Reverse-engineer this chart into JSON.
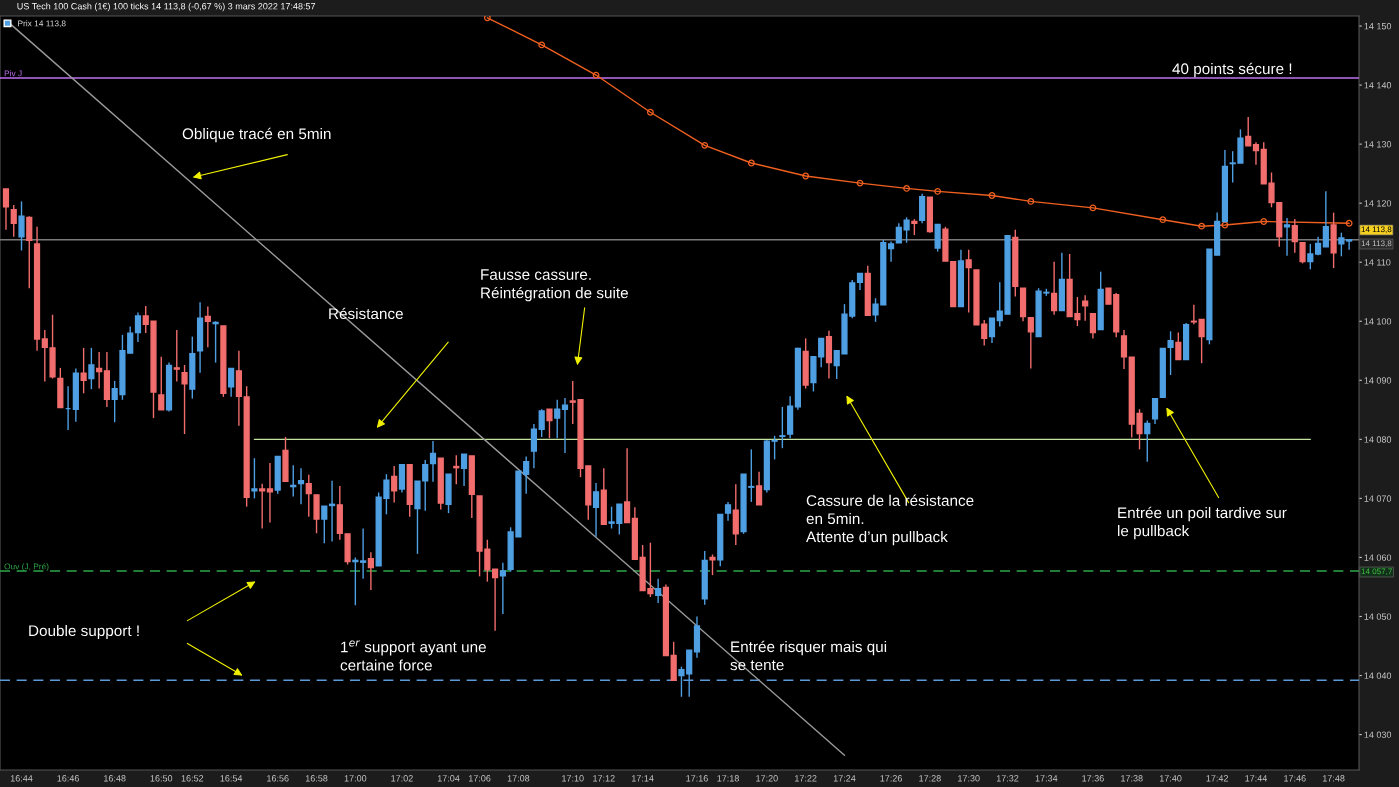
{
  "chart_data": {
    "type": "candlestick",
    "title": "US Tech 100 Cash (1€) 100 ticks 14 113,8 (-0,67 %) 3 mars 2022 17:48:57",
    "categories": [
      null,
      null,
      "16:44",
      null,
      null,
      null,
      null,
      null,
      "16:46",
      null,
      null,
      null,
      null,
      null,
      "16:48",
      null,
      null,
      null,
      null,
      null,
      "16:50",
      null,
      null,
      null,
      "16:52",
      null,
      null,
      null,
      null,
      "16:54",
      null,
      null,
      null,
      null,
      null,
      "16:56",
      null,
      null,
      null,
      null,
      "16:58",
      null,
      null,
      null,
      null,
      "17:00",
      null,
      null,
      null,
      null,
      null,
      "17:02",
      null,
      null,
      null,
      null,
      null,
      "17:04",
      null,
      null,
      null,
      "17:06",
      null,
      null,
      null,
      null,
      "17:08",
      null,
      null,
      null,
      null,
      null,
      null,
      "17:10",
      null,
      null,
      null,
      "17:12",
      null,
      null,
      null,
      null,
      "17:14",
      null,
      null,
      null,
      null,
      null,
      null,
      "17:16",
      null,
      null,
      null,
      "17:18",
      null,
      null,
      null,
      null,
      "17:20",
      null,
      null,
      null,
      null,
      "17:22",
      null,
      null,
      null,
      null,
      "17:24",
      null,
      null,
      null,
      null,
      null,
      "17:26",
      null,
      null,
      null,
      null,
      "17:28",
      null,
      null,
      null,
      null,
      "17:30",
      null,
      null,
      null,
      null,
      "17:32",
      null,
      null,
      null,
      null,
      "17:34",
      null,
      null,
      null,
      null,
      null,
      "17:36",
      null,
      null,
      null,
      null,
      "17:38",
      null,
      null,
      null,
      null,
      "17:40",
      null,
      null,
      null,
      null,
      null,
      "17:42",
      null,
      null,
      null,
      null,
      "17:44",
      null,
      null,
      null,
      null,
      "17:46",
      null,
      null,
      null,
      null,
      "17:48",
      null,
      null
    ],
    "ylim": [
      14024,
      14151.7
    ],
    "yticks": [
      {
        "value": 14030,
        "label": "14 030"
      },
      {
        "value": 14040,
        "label": "14 040"
      },
      {
        "value": 14050,
        "label": "14 050"
      },
      {
        "value": 14060,
        "label": "14 060"
      },
      {
        "value": 14070,
        "label": "14 070"
      },
      {
        "value": 14080,
        "label": "14 080"
      },
      {
        "value": 14090,
        "label": "14 090"
      },
      {
        "value": 14100,
        "label": "14 100"
      },
      {
        "value": 14110,
        "label": "14 110"
      },
      {
        "value": 14120,
        "label": "14 120"
      },
      {
        "value": 14130,
        "label": "14 130"
      },
      {
        "value": 14140,
        "label": "14 140"
      },
      {
        "value": 14150,
        "label": "14 150"
      }
    ],
    "legend": "top left",
    "series": [
      {
        "name": "Prix 14 113,8",
        "color": "#4f9fe3",
        "ohlc": [
          [
            14122.4,
            14122.4,
            14115.5,
            14119.4
          ],
          [
            14118.9,
            14119.7,
            14114.3,
            14116.6
          ],
          [
            14114.3,
            14120.3,
            14112.0,
            14117.8
          ],
          [
            14117.6,
            14117.8,
            14105.6,
            14113.7
          ],
          [
            14113.1,
            14116.0,
            14095.0,
            14097.0
          ],
          [
            14097.0,
            14098.5,
            14089.8,
            14095.6
          ],
          [
            14095.5,
            14101.1,
            14090.3,
            14090.6
          ],
          [
            14090.3,
            14092.1,
            14085.4,
            14085.4
          ],
          [
            14085.2,
            14089.0,
            14081.6,
            14085.2
          ],
          [
            14085.1,
            14092.0,
            14083.0,
            14091.2
          ],
          [
            14091.2,
            14095.5,
            14087.8,
            14090.0
          ],
          [
            14090.3,
            14095.5,
            14088.5,
            14092.6
          ],
          [
            14092.0,
            14094.8,
            14088.6,
            14091.5
          ],
          [
            14091.6,
            14094.8,
            14085.5,
            14086.8
          ],
          [
            14086.8,
            14089.9,
            14082.9,
            14088.6
          ],
          [
            14087.6,
            14097.7,
            14086.7,
            14095.0
          ],
          [
            14094.6,
            14099.1,
            14094.6,
            14098.0
          ],
          [
            14098.1,
            14101.5,
            14096.5,
            14100.9
          ],
          [
            14100.9,
            14102.6,
            14098.0,
            14099.5
          ],
          [
            14100.0,
            14100.0,
            14083.6,
            14088.0
          ],
          [
            14087.5,
            14094.0,
            14085.0,
            14085.0
          ],
          [
            14085.0,
            14093.0,
            14084.7,
            14092.5
          ],
          [
            14092.1,
            14098.5,
            14089.8,
            14091.9
          ],
          [
            14091.3,
            14092.6,
            14080.9,
            14089.4
          ],
          [
            14088.5,
            14097.4,
            14086.9,
            14094.5
          ],
          [
            14095.0,
            14103.2,
            14091.3,
            14100.5
          ],
          [
            14100.8,
            14102.5,
            14095.6,
            14100.0
          ],
          [
            14099.6,
            14100.0,
            14093.0,
            14099.8
          ],
          [
            14099.2,
            14099.2,
            14087.2,
            14087.8
          ],
          [
            14088.9,
            14092.0,
            14087.2,
            14092.0
          ],
          [
            14091.6,
            14095.0,
            14082.3,
            14087.3
          ],
          [
            14087.2,
            14089.0,
            14068.6,
            14070.2
          ],
          [
            14071.3,
            14076.8,
            14070.0,
            14071.6
          ],
          [
            14071.6,
            14072.5,
            14064.9,
            14071.3
          ],
          [
            14071.6,
            14076.0,
            14065.9,
            14071.1
          ],
          [
            14071.4,
            14077.1,
            14070.8,
            14077.1
          ],
          [
            14078.1,
            14080.4,
            14072.9,
            14072.9
          ],
          [
            14072.0,
            14075.6,
            14070.3,
            14072.2
          ],
          [
            14072.5,
            14075.1,
            14069.0,
            14073.0
          ],
          [
            14072.5,
            14074.0,
            14066.9,
            14070.8
          ],
          [
            14070.6,
            14070.6,
            14064.1,
            14066.5
          ],
          [
            14066.5,
            14068.7,
            14062.4,
            14068.7
          ],
          [
            14068.8,
            14073.0,
            14062.7,
            14069.0
          ],
          [
            14068.9,
            14072.1,
            14063.0,
            14064.1
          ],
          [
            14064.0,
            14064.0,
            14058.8,
            14059.3
          ],
          [
            14059.3,
            14060.0,
            14051.9,
            14059.5
          ],
          [
            14059.2,
            14064.9,
            14056.4,
            14059.4
          ],
          [
            14059.8,
            14060.9,
            14054.5,
            14058.3
          ],
          [
            14058.6,
            14071.0,
            14058.6,
            14070.2
          ],
          [
            14070.0,
            14074.1,
            14067.3,
            14073.1
          ],
          [
            14073.7,
            14075.5,
            14069.3,
            14071.3
          ],
          [
            14071.6,
            14075.7,
            14071.0,
            14075.7
          ],
          [
            14075.7,
            14075.7,
            14066.9,
            14069.0
          ],
          [
            14068.3,
            14072.9,
            14060.6,
            14072.9
          ],
          [
            14073.0,
            14076.5,
            14067.9,
            14075.7
          ],
          [
            14075.9,
            14079.7,
            14072.8,
            14077.6
          ],
          [
            14076.8,
            14076.8,
            14068.1,
            14069.2
          ],
          [
            14069.0,
            14074.1,
            14067.5,
            14074.1
          ],
          [
            14075.4,
            14077.3,
            14072.4,
            14075.2
          ],
          [
            14075.1,
            14077.5,
            14072.1,
            14077.5
          ],
          [
            14077.2,
            14077.2,
            14066.7,
            14070.7
          ],
          [
            14070.4,
            14070.4,
            14056.8,
            14061.1
          ],
          [
            14061.4,
            14063.0,
            14055.9,
            14057.9
          ],
          [
            14058.0,
            14058.0,
            14047.6,
            14056.6
          ],
          [
            14056.9,
            14059.1,
            14050.4,
            14057.7
          ],
          [
            14058.0,
            14065.1,
            14057.6,
            14064.3
          ],
          [
            14063.5,
            14074.6,
            14063.5,
            14074.6
          ],
          [
            14074.1,
            14077.1,
            14070.8,
            14076.2
          ],
          [
            14078.0,
            14082.6,
            14075.1,
            14081.7
          ],
          [
            14081.7,
            14085.1,
            14080.4,
            14084.8
          ],
          [
            14085.1,
            14085.1,
            14080.2,
            14083.2
          ],
          [
            14083.6,
            14086.7,
            14080.2,
            14085.1
          ],
          [
            14085.1,
            14087.0,
            14077.7,
            14085.8
          ],
          [
            14086.5,
            14089.9,
            14082.6,
            14086.3
          ],
          [
            14086.7,
            14086.7,
            14073.6,
            14075.1
          ],
          [
            14075.5,
            14075.5,
            14066.4,
            14068.9
          ],
          [
            14068.5,
            14072.6,
            14063.5,
            14071.1
          ],
          [
            14071.4,
            14075.1,
            14065.6,
            14065.6
          ],
          [
            14065.8,
            14068.6,
            14064.9,
            14066.0
          ],
          [
            14065.8,
            14069.0,
            14063.9,
            14069.0
          ],
          [
            14069.4,
            14078.5,
            14065.9,
            14065.9
          ],
          [
            14066.6,
            14068.5,
            14059.7,
            14059.7
          ],
          [
            14060.0,
            14062.1,
            14054.4,
            14054.4
          ],
          [
            14054.7,
            14062.5,
            14053.3,
            14053.9
          ],
          [
            14053.6,
            14056.4,
            14052.3,
            14054.7
          ],
          [
            14054.9,
            14055.4,
            14043.4,
            14043.4
          ],
          [
            14043.4,
            14045.7,
            14039.2,
            14039.2
          ],
          [
            14040.0,
            14041.5,
            14036.4,
            14041.0
          ],
          [
            14040.3,
            14044.3,
            14036.4,
            14044.3
          ],
          [
            14044.0,
            14050.0,
            14043.0,
            14048.4
          ],
          [
            14053.0,
            14061.1,
            14052.0,
            14059.5
          ],
          [
            14060.0,
            14060.5,
            14057.0,
            14059.6
          ],
          [
            14059.6,
            14067.3,
            14058.5,
            14067.3
          ],
          [
            14067.5,
            14069.4,
            14066.2,
            14068.9
          ],
          [
            14068.0,
            14072.4,
            14062.1,
            14064.0
          ],
          [
            14064.4,
            14074.1,
            14064.0,
            14074.1
          ],
          [
            14071.9,
            14078.3,
            14069.4,
            14072.0
          ],
          [
            14072.1,
            14074.5,
            14068.9,
            14068.9
          ],
          [
            14071.5,
            14079.9,
            14071.0,
            14079.7
          ],
          [
            14079.7,
            14080.6,
            14076.6,
            14079.8
          ],
          [
            14080.5,
            14085.5,
            14078.5,
            14080.6
          ],
          [
            14080.9,
            14087.3,
            14080.2,
            14085.6
          ],
          [
            14085.5,
            14095.5,
            14085.0,
            14095.4
          ],
          [
            14094.9,
            14097.1,
            14088.6,
            14089.2
          ],
          [
            14089.6,
            14094.0,
            14088.1,
            14094.0
          ],
          [
            14094.0,
            14097.1,
            14092.2,
            14097.1
          ],
          [
            14097.4,
            14098.4,
            14090.3,
            14093.0
          ],
          [
            14092.5,
            14095.0,
            14090.2,
            14095.0
          ],
          [
            14094.5,
            14102.9,
            14094.5,
            14101.2
          ],
          [
            14100.9,
            14107.0,
            14100.5,
            14106.5
          ],
          [
            14106.6,
            14108.1,
            14105.3,
            14108.1
          ],
          [
            14108.1,
            14109.4,
            14101.0,
            14101.0
          ],
          [
            14101.1,
            14103.9,
            14099.9,
            14102.9
          ],
          [
            14102.8,
            14113.8,
            14102.8,
            14113.3
          ],
          [
            14112.3,
            14113.5,
            14110.1,
            14113.1
          ],
          [
            14113.3,
            14116.6,
            14113.3,
            14115.9
          ],
          [
            14115.5,
            14117.6,
            14113.3,
            14117.1
          ],
          [
            14116.9,
            14117.3,
            14114.6,
            14116.6
          ],
          [
            14117.1,
            14121.6,
            14116.6,
            14121.1
          ],
          [
            14121.0,
            14121.0,
            14115.0,
            14115.2
          ],
          [
            14112.4,
            14116.4,
            14111.8,
            14116.4
          ],
          [
            14115.6,
            14116.0,
            14110.2,
            14110.2
          ],
          [
            14110.1,
            14110.1,
            14102.5,
            14102.5
          ],
          [
            14102.5,
            14112.1,
            14102.5,
            14110.2
          ],
          [
            14110.4,
            14112.1,
            14101.5,
            14109.1
          ],
          [
            14108.7,
            14108.7,
            14099.4,
            14099.4
          ],
          [
            14099.5,
            14100.2,
            14095.9,
            14097.1
          ],
          [
            14097.4,
            14100.5,
            14096.3,
            14100.5
          ],
          [
            14100.1,
            14106.6,
            14099.1,
            14101.7
          ],
          [
            14101.2,
            14114.5,
            14101.2,
            14114.5
          ],
          [
            14114.2,
            14115.5,
            14104.2,
            14105.9
          ],
          [
            14105.6,
            14105.6,
            14100.0,
            14100.8
          ],
          [
            14100.6,
            14100.6,
            14092.0,
            14098.2
          ],
          [
            14097.4,
            14105.6,
            14097.4,
            14105.1
          ],
          [
            14104.8,
            14105.5,
            14104.3,
            14104.9
          ],
          [
            14104.7,
            14110.1,
            14101.1,
            14101.8
          ],
          [
            14101.8,
            14111.6,
            14101.8,
            14107.1
          ],
          [
            14107.1,
            14111.4,
            14100.8,
            14100.8
          ],
          [
            14101.3,
            14104.1,
            14099.2,
            14100.3
          ],
          [
            14103.4,
            14104.4,
            14100.1,
            14102.6
          ],
          [
            14101.3,
            14101.3,
            14097.1,
            14098.1
          ],
          [
            14098.6,
            14108.4,
            14098.6,
            14105.4
          ],
          [
            14105.6,
            14105.6,
            14102.9,
            14102.9
          ],
          [
            14104.5,
            14104.8,
            14097.3,
            14098.2
          ],
          [
            14097.5,
            14098.5,
            14091.9,
            14094.0
          ],
          [
            14093.9,
            14093.9,
            14080.3,
            14082.6
          ],
          [
            14084.4,
            14085.1,
            14078.3,
            14081.0
          ],
          [
            14081.0,
            14083.2,
            14076.2,
            14082.7
          ],
          [
            14083.5,
            14086.9,
            14082.6,
            14086.9
          ],
          [
            14087.1,
            14095.4,
            14087.1,
            14095.4
          ],
          [
            14095.6,
            14098.3,
            14090.9,
            14096.7
          ],
          [
            14096.4,
            14098.1,
            14093.5,
            14093.5
          ],
          [
            14093.5,
            14099.7,
            14093.5,
            14099.4
          ],
          [
            14100.0,
            14102.8,
            14099.5,
            14099.9
          ],
          [
            14100.3,
            14100.3,
            14092.9,
            14097.4
          ],
          [
            14096.9,
            14112.2,
            14096.1,
            14112.2
          ],
          [
            14111.2,
            14118.4,
            14111.2,
            14116.9
          ],
          [
            14116.9,
            14129.0,
            14116.9,
            14126.2
          ],
          [
            14126.7,
            14128.8,
            14123.5,
            14126.8
          ],
          [
            14126.8,
            14132.5,
            14126.8,
            14131.0
          ],
          [
            14131.3,
            14134.6,
            14129.7,
            14129.7
          ],
          [
            14129.9,
            14130.3,
            14126.5,
            14128.9
          ],
          [
            14129.1,
            14130.3,
            14123.3,
            14123.3
          ],
          [
            14123.4,
            14125.2,
            14119.3,
            14120.1
          ],
          [
            14120.1,
            14120.1,
            14112.6,
            14114.3
          ],
          [
            14116.0,
            14117.5,
            14111.1,
            14116.3
          ],
          [
            14116.2,
            14117.3,
            14111.6,
            14113.5
          ],
          [
            14113.3,
            14113.3,
            14109.8,
            14110.1
          ],
          [
            14110.1,
            14113.1,
            14108.8,
            14111.4
          ],
          [
            14111.4,
            14114.3,
            14111.2,
            14113.2
          ],
          [
            14112.6,
            14122.0,
            14112.6,
            14116.0
          ],
          [
            14116.3,
            14118.4,
            14109.0,
            14111.6
          ],
          [
            14113.1,
            14115.0,
            14111.0,
            14114.1
          ],
          [
            14113.6,
            14113.9,
            14112.1,
            14113.8
          ]
        ],
        "colors": [
          "#f26d6d",
          "#f26d6d",
          "#4f9fe3",
          "#f26d6d",
          "#f26d6d",
          "#f26d6d",
          "#f26d6d",
          "#f26d6d",
          "#4f9fe3",
          "#4f9fe3",
          "#f26d6d",
          "#4f9fe3",
          "#f26d6d",
          "#f26d6d",
          "#4f9fe3",
          "#4f9fe3",
          "#4f9fe3",
          "#4f9fe3",
          "#f26d6d",
          "#f26d6d",
          "#f26d6d",
          "#4f9fe3",
          "#f26d6d",
          "#f26d6d",
          "#4f9fe3",
          "#4f9fe3",
          "#f26d6d",
          "#4f9fe3",
          "#f26d6d",
          "#4f9fe3",
          "#f26d6d",
          "#f26d6d",
          "#4f9fe3",
          "#f26d6d",
          "#f26d6d",
          "#4f9fe3",
          "#f26d6d",
          "#4f9fe3",
          "#4f9fe3",
          "#f26d6d",
          "#f26d6d",
          "#4f9fe3",
          "#4f9fe3",
          "#f26d6d",
          "#f26d6d",
          "#4f9fe3",
          "#4f9fe3",
          "#f26d6d",
          "#4f9fe3",
          "#4f9fe3",
          "#f26d6d",
          "#4f9fe3",
          "#f26d6d",
          "#4f9fe3",
          "#4f9fe3",
          "#4f9fe3",
          "#f26d6d",
          "#4f9fe3",
          "#f26d6d",
          "#4f9fe3",
          "#f26d6d",
          "#f26d6d",
          "#f26d6d",
          "#f26d6d",
          "#4f9fe3",
          "#4f9fe3",
          "#4f9fe3",
          "#4f9fe3",
          "#4f9fe3",
          "#4f9fe3",
          "#f26d6d",
          "#4f9fe3",
          "#4f9fe3",
          "#f26d6d",
          "#f26d6d",
          "#f26d6d",
          "#4f9fe3",
          "#f26d6d",
          "#4f9fe3",
          "#4f9fe3",
          "#f26d6d",
          "#f26d6d",
          "#f26d6d",
          "#f26d6d",
          "#4f9fe3",
          "#f26d6d",
          "#f26d6d",
          "#4f9fe3",
          "#4f9fe3",
          "#4f9fe3",
          "#4f9fe3",
          "#f26d6d",
          "#4f9fe3",
          "#4f9fe3",
          "#f26d6d",
          "#4f9fe3",
          "#4f9fe3",
          "#f26d6d",
          "#4f9fe3",
          "#4f9fe3",
          "#4f9fe3",
          "#4f9fe3",
          "#4f9fe3",
          "#f26d6d",
          "#4f9fe3",
          "#4f9fe3",
          "#f26d6d",
          "#4f9fe3",
          "#4f9fe3",
          "#4f9fe3",
          "#4f9fe3",
          "#f26d6d",
          "#4f9fe3",
          "#4f9fe3",
          "#4f9fe3",
          "#4f9fe3",
          "#4f9fe3",
          "#f26d6d",
          "#4f9fe3",
          "#f26d6d",
          "#4f9fe3",
          "#f26d6d",
          "#f26d6d",
          "#4f9fe3",
          "#f26d6d",
          "#f26d6d",
          "#f26d6d",
          "#4f9fe3",
          "#4f9fe3",
          "#4f9fe3",
          "#f26d6d",
          "#f26d6d",
          "#f26d6d",
          "#4f9fe3",
          "#4f9fe3",
          "#f26d6d",
          "#4f9fe3",
          "#f26d6d",
          "#f26d6d",
          "#f26d6d",
          "#f26d6d",
          "#4f9fe3",
          "#f26d6d",
          "#f26d6d",
          "#f26d6d",
          "#f26d6d",
          "#f26d6d",
          "#4f9fe3",
          "#4f9fe3",
          "#4f9fe3",
          "#4f9fe3",
          "#f26d6d",
          "#4f9fe3",
          "#f26d6d",
          "#f26d6d",
          "#4f9fe3",
          "#4f9fe3",
          "#4f9fe3",
          "#4f9fe3",
          "#4f9fe3",
          "#f26d6d",
          "#f26d6d",
          "#f26d6d",
          "#f26d6d",
          "#f26d6d",
          "#4f9fe3",
          "#f26d6d",
          "#f26d6d",
          "#4f9fe3",
          "#4f9fe3",
          "#4f9fe3",
          "#f26d6d",
          "#4f9fe3",
          "#4f9fe3"
        ]
      },
      {
        "type": "line",
        "color": "#f06020",
        "marker": "circle",
        "line_style": "solid",
        "values": [
          null,
          null,
          null,
          null,
          null,
          null,
          null,
          null,
          null,
          null,
          null,
          null,
          null,
          null,
          null,
          null,
          null,
          null,
          null,
          null,
          null,
          null,
          null,
          null,
          null,
          null,
          null,
          null,
          null,
          null,
          null,
          null,
          null,
          null,
          null,
          null,
          null,
          null,
          null,
          null,
          null,
          null,
          null,
          null,
          null,
          null,
          null,
          null,
          null,
          null,
          null,
          null,
          null,
          null,
          null,
          null,
          null,
          null,
          null,
          null,
          null,
          null,
          14151.4,
          null,
          null,
          null,
          null,
          null,
          null,
          14146.8,
          null,
          null,
          null,
          null,
          null,
          null,
          14141.7,
          null,
          null,
          null,
          null,
          null,
          null,
          14135.4,
          null,
          null,
          null,
          null,
          null,
          null,
          14129.8,
          null,
          null,
          null,
          null,
          null,
          14126.8,
          null,
          null,
          null,
          null,
          null,
          null,
          14124.6,
          null,
          null,
          null,
          null,
          null,
          null,
          14123.4,
          null,
          null,
          null,
          null,
          null,
          14122.5,
          null,
          null,
          null,
          14122.0,
          null,
          null,
          null,
          null,
          null,
          null,
          14121.3,
          null,
          null,
          null,
          null,
          14120.3,
          null,
          null,
          null,
          null,
          null,
          null,
          null,
          14119.2,
          null,
          null,
          null,
          null,
          null,
          null,
          null,
          null,
          14117.2,
          null,
          null,
          null,
          null,
          14116.1,
          null,
          null,
          14116.3,
          null,
          null,
          null,
          null,
          14116.9,
          null,
          null,
          null,
          null,
          null,
          null,
          null,
          null,
          null,
          null,
          14116.6
        ]
      },
      {
        "type": "line",
        "color": "#c5e3a0",
        "line_style": "solid",
        "values": [
          null,
          null,
          null,
          null,
          null,
          null,
          null,
          null,
          null,
          null,
          null,
          null,
          null,
          null,
          null,
          null,
          null,
          null,
          null,
          null,
          null,
          null,
          null,
          null,
          null,
          null,
          null,
          null,
          null,
          null,
          null,
          null,
          14080,
          null,
          null,
          null,
          null,
          null,
          null,
          null,
          null,
          null,
          null,
          null,
          null,
          null,
          null,
          null,
          null,
          null,
          null,
          null,
          null,
          null,
          null,
          null,
          null,
          null,
          null,
          null,
          null,
          null,
          null,
          null,
          null,
          null,
          null,
          null,
          null,
          null,
          null,
          null,
          null,
          null,
          null,
          null,
          null,
          null,
          null,
          null,
          null,
          null,
          null,
          null,
          null,
          null,
          null,
          null,
          null,
          null,
          null,
          null,
          null,
          null,
          null,
          null,
          null,
          null,
          null,
          null,
          null,
          null,
          null,
          null,
          null,
          null,
          null,
          null,
          null,
          null,
          null,
          null,
          null,
          null,
          null,
          null,
          null,
          null,
          null,
          null,
          null,
          null,
          null,
          null,
          null,
          null,
          null,
          null,
          null,
          null,
          null,
          null,
          null,
          null,
          null,
          null,
          null,
          null,
          null,
          null,
          null,
          null,
          null,
          null,
          null,
          null,
          null,
          null,
          null,
          null,
          null,
          null,
          null,
          null,
          null,
          null,
          null,
          null,
          null,
          null,
          null,
          null,
          null,
          null,
          null,
          null,
          null,
          null,
          14080,
          null,
          null,
          null,
          null,
          null
        ]
      },
      {
        "type": "line",
        "color": "#9a9a9a",
        "line_style": "solid",
        "values": [
          14151.0,
          null,
          null,
          null,
          null,
          null,
          null,
          null,
          null,
          null,
          null,
          null,
          null,
          null,
          null,
          null,
          null,
          null,
          null,
          null,
          null,
          null,
          null,
          null,
          null,
          null,
          null,
          null,
          null,
          null,
          null,
          null,
          null,
          null,
          null,
          null,
          null,
          null,
          null,
          null,
          null,
          null,
          null,
          null,
          null,
          null,
          null,
          null,
          null,
          null,
          null,
          null,
          null,
          null,
          null,
          null,
          null,
          null,
          null,
          null,
          null,
          null,
          null,
          null,
          null,
          null,
          null,
          null,
          null,
          null,
          null,
          null,
          null,
          null,
          null,
          null,
          null,
          null,
          null,
          null,
          null,
          null,
          null,
          null,
          null,
          null,
          null,
          null,
          null,
          null,
          null,
          null,
          null,
          null,
          null,
          null,
          null,
          null,
          null,
          null,
          null,
          null,
          null,
          null,
          null,
          null,
          null,
          null,
          14026.5,
          null,
          null,
          null,
          null,
          null,
          null,
          null,
          null,
          null,
          null,
          null,
          null,
          null,
          null,
          null,
          null,
          null,
          null,
          null,
          null,
          null,
          null,
          null,
          null,
          null,
          null,
          null,
          null,
          null,
          null,
          null,
          null,
          null,
          null,
          null,
          null,
          null,
          null,
          null,
          null,
          null,
          null,
          null,
          null,
          null,
          null,
          null,
          null,
          null,
          null,
          null,
          null,
          null,
          null,
          null,
          null,
          null,
          null,
          null,
          null,
          null,
          null,
          null,
          null,
          null
        ]
      }
    ],
    "ref_lines": [
      {
        "axis": "y",
        "value": 14141.2,
        "label": "Piv J",
        "color": "#c070f0",
        "line_style": "solid"
      },
      {
        "axis": "y",
        "value": 14113.8,
        "color": "#7a7a7a",
        "line_style": "solid"
      },
      {
        "axis": "y",
        "value": 14057.7,
        "label": "Ouv (J, Pré)",
        "color": "#2ea84a",
        "line_style": "dashed"
      },
      {
        "axis": "y",
        "value": 14039.2,
        "color": "#5a9ad8",
        "line_style": "dashed"
      }
    ],
    "annotations": [
      "Oblique tracé en 5min",
      "Résistance",
      "Fausse cassure.\nRéintégration de suite",
      "Cassure de la résistance\nen 5min.\nAttente d’un pullback",
      "Entrée un poil tardive sur\nle pullback",
      "40 points sécure !",
      "Double support !",
      "1$^{er}$ support ayant une\ncertaine force",
      "Entrée risquer mais qui\nse tente",
      "14 113,8",
      "14 113,8",
      "14 057,7"
    ]
  }
}
